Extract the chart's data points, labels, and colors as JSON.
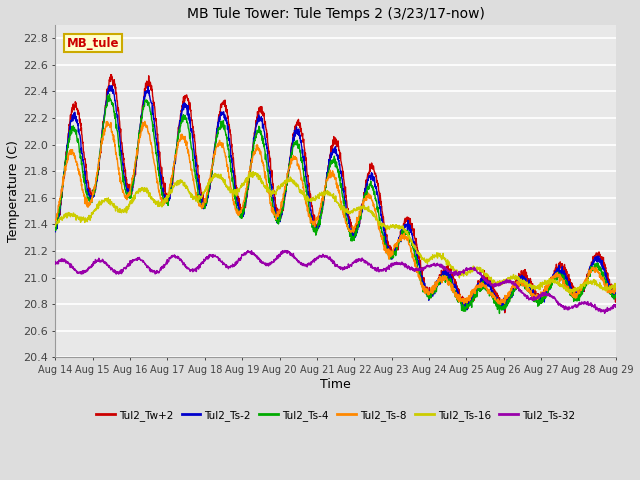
{
  "title": "MB Tule Tower: Tule Temps 2 (3/23/17-now)",
  "xlabel": "Time",
  "ylabel": "Temperature (C)",
  "ylim": [
    20.4,
    22.9
  ],
  "xlim": [
    0,
    15
  ],
  "xtick_labels": [
    "Aug 14",
    "Aug 15",
    "Aug 16",
    "Aug 17",
    "Aug 18",
    "Aug 19",
    "Aug 20",
    "Aug 21",
    "Aug 22",
    "Aug 23",
    "Aug 24",
    "Aug 25",
    "Aug 26",
    "Aug 27",
    "Aug 28",
    "Aug 29"
  ],
  "ytick_labels": [
    "20.4",
    "20.6",
    "20.8",
    "21.0",
    "21.2",
    "21.4",
    "21.6",
    "21.8",
    "22.0",
    "22.2",
    "22.4",
    "22.6",
    "22.8"
  ],
  "ytick_values": [
    20.4,
    20.6,
    20.8,
    21.0,
    21.2,
    21.4,
    21.6,
    21.8,
    22.0,
    22.2,
    22.4,
    22.6,
    22.8
  ],
  "background_color": "#dddddd",
  "plot_bg_color": "#e8e8e8",
  "grid_color": "#ffffff",
  "legend_label": "MB_tule",
  "legend_bg": "#ffffcc",
  "legend_border": "#ccaa00",
  "series_labels": [
    "Tul2_Tw+2",
    "Tul2_Ts-2",
    "Tul2_Ts-4",
    "Tul2_Ts-8",
    "Tul2_Ts-16",
    "Tul2_Ts-32"
  ],
  "series_colors": [
    "#cc0000",
    "#0000cc",
    "#00aa00",
    "#ff8800",
    "#cccc00",
    "#9900aa"
  ],
  "linewidth": 1.0,
  "figwidth": 6.4,
  "figheight": 4.8,
  "dpi": 100
}
